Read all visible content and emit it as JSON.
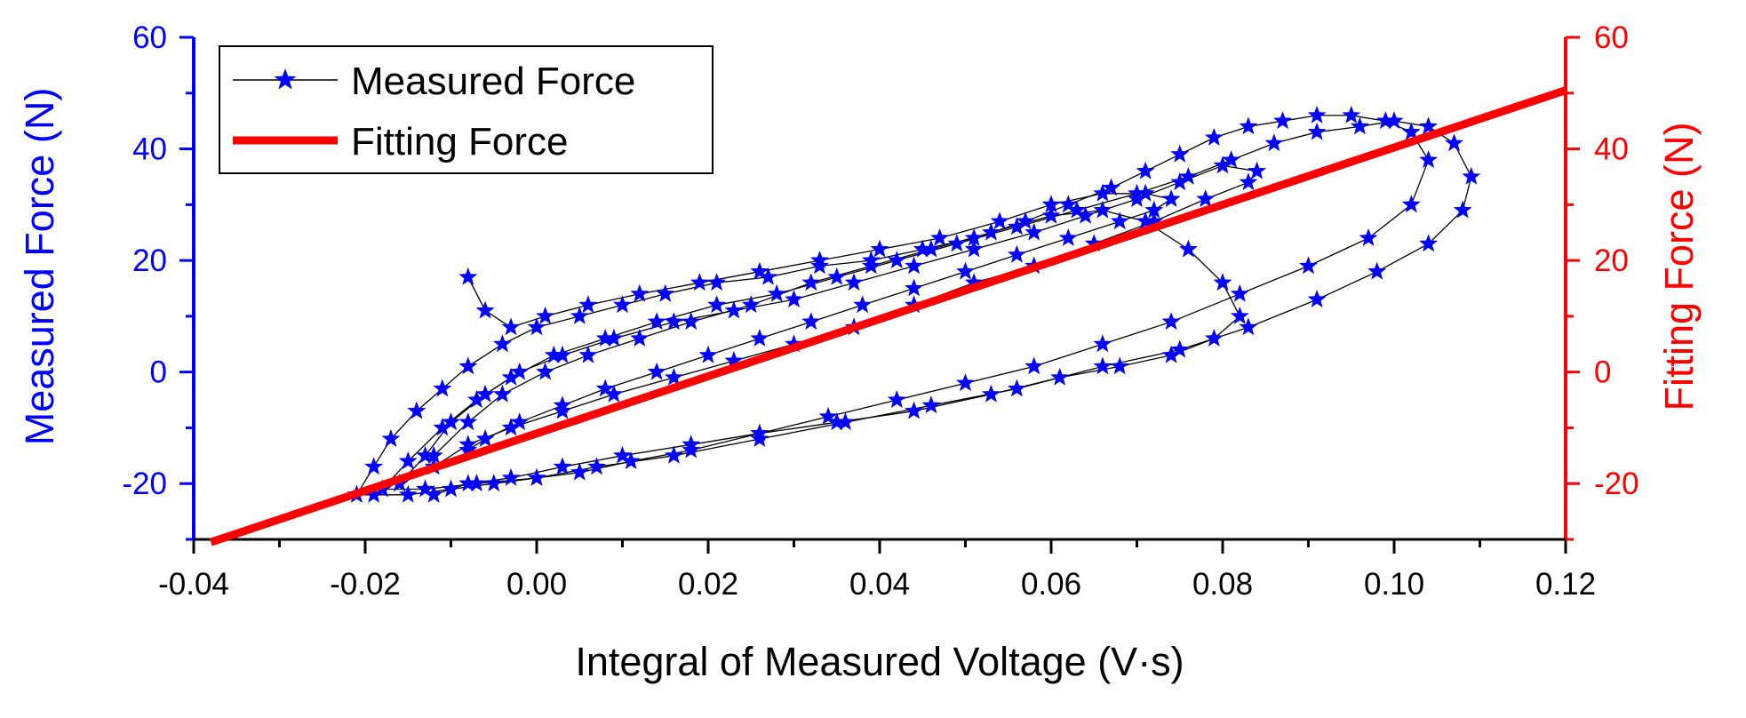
{
  "chart_data": {
    "type": "scatter",
    "xlabel": "Integral of Measured Voltage (V·s)",
    "ylabel_left": "Measured Force (N)",
    "ylabel_right": "Fitting Force (N)",
    "xlim": [
      -0.04,
      0.12
    ],
    "ylim_left": [
      -30,
      60
    ],
    "ylim_right": [
      -30,
      60
    ],
    "x_ticks": [
      "-0.04",
      "-0.02",
      "0.00",
      "0.02",
      "0.04",
      "0.06",
      "0.08",
      "0.10",
      "0.12"
    ],
    "y_ticks_left": [
      "-20",
      "0",
      "20",
      "40",
      "60"
    ],
    "y_ticks_right": [
      "-20",
      "0",
      "20",
      "40",
      "60"
    ],
    "legend": [
      {
        "label": "Measured Force",
        "color": "#0000ff",
        "marker": "star",
        "line_color": "#000000"
      },
      {
        "label": "Fitting Force",
        "color": "#ff0000"
      }
    ],
    "legend_position": "top-left",
    "grid": false,
    "colors": {
      "measured": "#0000ff",
      "fitting": "#ff0000",
      "connector": "#000000",
      "left_axis": "#0000ff",
      "right_axis": "#ff0000",
      "bottom_axis": "#000000"
    },
    "series": [
      {
        "name": "Fitting Force",
        "kind": "line",
        "x": [
          -0.038,
          0.12
        ],
        "y": [
          -30.5,
          50.5
        ]
      },
      {
        "name": "Measured Force",
        "kind": "line-marker",
        "loops": [
          {
            "x": [
              -0.021,
              -0.019,
              -0.017,
              -0.014,
              -0.011,
              -0.008,
              -0.004,
              0.0,
              0.005,
              0.01,
              0.015,
              0.021,
              0.027,
              0.033,
              0.039,
              0.045,
              0.051,
              0.057,
              0.062,
              0.067,
              0.071,
              0.075,
              0.079,
              0.083,
              0.087,
              0.091,
              0.095,
              0.099,
              0.102,
              0.104,
              0.102,
              0.097,
              0.09,
              0.082,
              0.074,
              0.066,
              0.058,
              0.05,
              0.042,
              0.034,
              0.026,
              0.018,
              0.011,
              0.005,
              0.0,
              -0.005,
              -0.01,
              -0.015,
              -0.019,
              -0.021
            ],
            "y": [
              -22,
              -17,
              -12,
              -7,
              -3,
              1,
              5,
              8,
              10,
              12,
              14,
              16,
              17,
              19,
              20,
              22,
              24,
              27,
              30,
              33,
              36,
              39,
              42,
              44,
              45,
              46,
              46,
              45,
              43,
              38,
              30,
              24,
              19,
              14,
              9,
              5,
              1,
              -2,
              -5,
              -8,
              -11,
              -14,
              -16,
              -18,
              -19,
              -20,
              -21,
              -22,
              -22,
              -22
            ]
          },
          {
            "x": [
              -0.018,
              -0.015,
              -0.011,
              -0.007,
              -0.003,
              0.002,
              0.008,
              0.014,
              0.021,
              0.028,
              0.035,
              0.042,
              0.049,
              0.056,
              0.063,
              0.07,
              0.076,
              0.081,
              0.086,
              0.091,
              0.096,
              0.1,
              0.104,
              0.107,
              0.109,
              0.108,
              0.104,
              0.098,
              0.091,
              0.083,
              0.075,
              0.066,
              0.056,
              0.046,
              0.036,
              0.026,
              0.016,
              0.007,
              0.0,
              -0.007,
              -0.013,
              -0.018
            ],
            "y": [
              -21,
              -16,
              -10,
              -5,
              -1,
              3,
              6,
              9,
              12,
              14,
              17,
              20,
              23,
              26,
              29,
              32,
              35,
              38,
              41,
              43,
              44,
              45,
              44,
              41,
              35,
              29,
              23,
              18,
              13,
              8,
              4,
              1,
              -3,
              -6,
              -9,
              -12,
              -15,
              -17,
              -19,
              -20,
              -21,
              -21
            ]
          },
          {
            "x": [
              -0.016,
              -0.013,
              -0.01,
              -0.006,
              -0.002,
              0.003,
              0.009,
              0.016,
              0.023,
              0.03,
              0.037,
              0.044,
              0.051,
              0.058,
              0.064,
              0.07,
              0.075,
              0.08,
              0.084,
              0.083,
              0.078,
              0.072,
              0.065,
              0.058,
              0.051,
              0.044,
              0.037,
              0.03,
              0.023,
              0.016,
              0.009,
              0.003,
              -0.003,
              -0.008,
              -0.012,
              -0.016
            ],
            "y": [
              -20,
              -15,
              -9,
              -4,
              0,
              3,
              6,
              9,
              11,
              13,
              16,
              19,
              22,
              25,
              28,
              31,
              34,
              37,
              36,
              34,
              31,
              27,
              23,
              19,
              16,
              12,
              8,
              5,
              2,
              -1,
              -4,
              -7,
              -10,
              -13,
              -17,
              -20
            ]
          },
          {
            "x": [
              -0.008,
              -0.006,
              -0.003,
              0.001,
              0.006,
              0.012,
              0.019,
              0.026,
              0.033,
              0.04,
              0.047,
              0.054,
              0.06,
              0.066,
              0.071,
              0.074,
              0.072,
              0.068,
              0.062,
              0.056,
              0.05,
              0.044,
              0.038,
              0.032,
              0.026,
              0.02,
              0.014,
              0.008,
              0.003,
              -0.002,
              -0.006,
              -0.008
            ],
            "y": [
              17,
              11,
              8,
              10,
              12,
              14,
              16,
              18,
              20,
              22,
              24,
              27,
              30,
              32,
              32,
              31,
              29,
              27,
              24,
              21,
              18,
              15,
              12,
              9,
              6,
              3,
              0,
              -3,
              -6,
              -9,
              -12,
              -14
            ]
          },
          {
            "x": [
              -0.012,
              -0.008,
              -0.003,
              0.003,
              0.01,
              0.018,
              0.026,
              0.035,
              0.044,
              0.053,
              0.061,
              0.068,
              0.074,
              0.079,
              0.082,
              0.08,
              0.076,
              0.071,
              0.066,
              0.06,
              0.053,
              0.046,
              0.039,
              0.032,
              0.025,
              0.018,
              0.012,
              0.006,
              0.001,
              -0.004,
              -0.008,
              -0.012
            ],
            "y": [
              -22,
              -20,
              -19,
              -17,
              -15,
              -13,
              -11,
              -9,
              -7,
              -4,
              -1,
              1,
              3,
              6,
              10,
              16,
              22,
              27,
              29,
              28,
              25,
              22,
              19,
              16,
              12,
              9,
              6,
              3,
              0,
              -4,
              -9,
              -15
            ]
          }
        ]
      }
    ]
  }
}
